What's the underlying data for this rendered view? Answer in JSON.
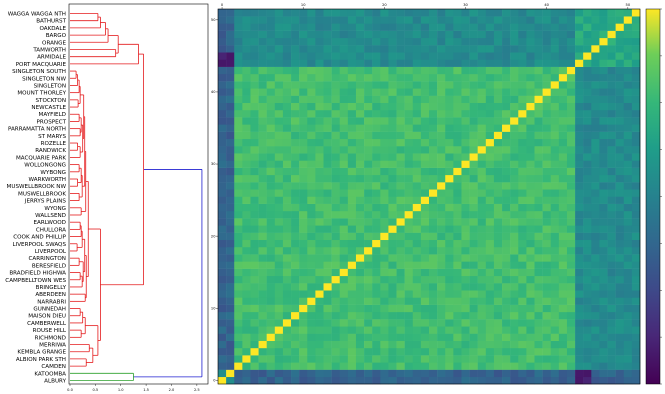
{
  "chart_data": [
    {
      "type": "dendrogram",
      "orientation": "left",
      "leaves": [
        "WAGGA WAGGA NTH",
        "BATHURST",
        "OAKDALE",
        "BARGO",
        "ORANGE",
        "TAMWORTH",
        "ARMIDALE",
        "PORT MACQUARIE",
        "SINGLETON SOUTH",
        "SINGLETON NW",
        "SINGLETON",
        "MOUNT THORLEY",
        "STOCKTON",
        "NEWCASTLE",
        "MAYFIELD",
        "PROSPECT",
        "PARRAMATTA NORTH",
        "ST MARYS",
        "ROZELLE",
        "RANDWICK",
        "MACQUARIE PARK",
        "WOLLONGONG",
        "WYBONG",
        "WARKWORTH",
        "MUSWELLBROOK NW",
        "MUSWELLBROOK",
        "JERRYS PLAINS",
        "WYONG",
        "WALLSEND",
        "EARLWOOD",
        "CHULLORA",
        "COOK AND PHILLIP",
        "LIVERPOOL SWAQS",
        "LIVERPOOL",
        "CARRINGTON",
        "BERESFIELD",
        "BRADFIELD HIGHWA",
        "CAMPBELLTOWN WES",
        "BRINGELLY",
        "ABERDEEN",
        "NARRABRI",
        "GUNNEDAH",
        "MAISON DIEU",
        "CAMBERWELL",
        "ROUSE HILL",
        "RICHMOND",
        "MERRIWA",
        "KEMBLA GRANGE",
        "ALBION PARK STH",
        "CAMDEN",
        "KATOOMBA",
        "ALBURY"
      ],
      "xticks": [
        "0.0",
        "0.5",
        "1.0",
        "1.5",
        "2.0",
        "2.5"
      ],
      "xlim": [
        0,
        2.7
      ],
      "colors": {
        "cluster_main": "#e41a1c",
        "cluster_small": "#2ca02c",
        "root": "#1f1fd0"
      },
      "groups": [
        {
          "members": [
            "KATOOMBA",
            "ALBURY"
          ],
          "height": 1.25,
          "color": "#2ca02c"
        },
        {
          "members": [
            "WAGGA WAGGA NTH",
            "...",
            "CAMDEN"
          ],
          "height": 1.45,
          "color": "#e41a1c"
        },
        {
          "members": [
            "all"
          ],
          "height": 2.6,
          "color": "#1f1fd0"
        }
      ]
    },
    {
      "type": "heatmap",
      "n": 52,
      "xticks": [
        "0",
        "10",
        "20",
        "30",
        "40",
        "50"
      ],
      "yticks": [
        "0",
        "10",
        "20",
        "30",
        "40",
        "50"
      ],
      "colormap": "viridis",
      "colorbar_range": [
        0,
        1
      ],
      "diagonal_value": 1.0,
      "block_structure": "rows/cols 0-1 (KATOOMBA, ALBURY) low similarity; 44-51 moderate; 2-43 high (~0.75-0.85)"
    }
  ]
}
